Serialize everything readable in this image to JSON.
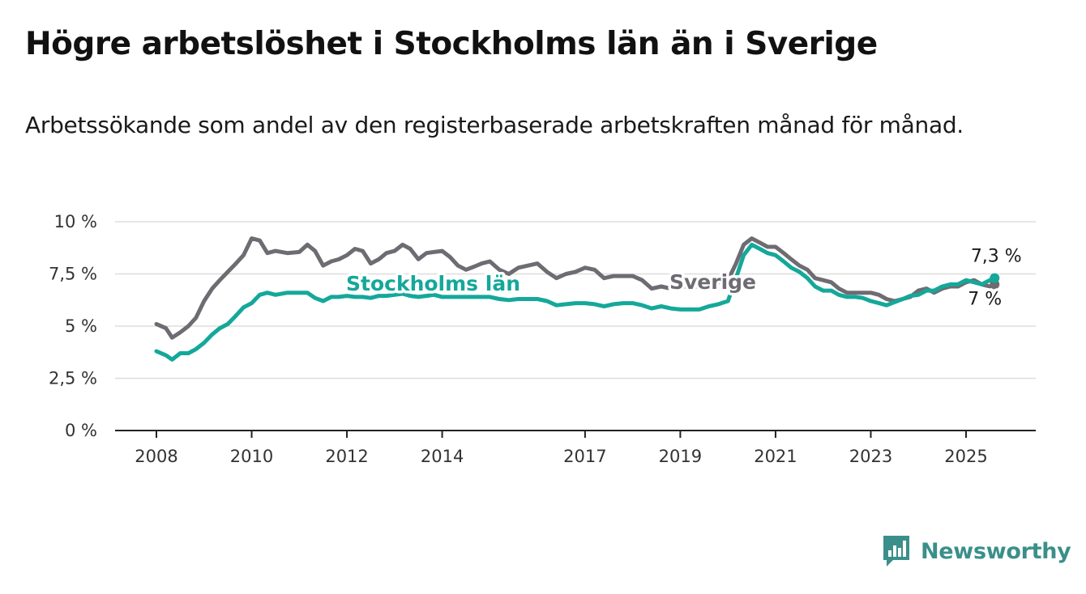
{
  "title": "Högre arbetslöshet i Stockholms län än i Sverige",
  "subtitle": "Arbetssökande som andel av den registerbaserade arbetskraften månad för månad.",
  "brand": "Newsworthy",
  "colors": {
    "sverige": "#6e6c72",
    "stockholm": "#14a89a",
    "grid": "#dddddd",
    "brand": "#3a8f8a"
  },
  "chart_data": {
    "type": "line",
    "title": "Högre arbetslöshet i Stockholms län än i Sverige",
    "xlabel": "",
    "ylabel": "",
    "xlim": [
      2008,
      2026
    ],
    "ylim": [
      0,
      10
    ],
    "x_ticks": [
      {
        "value": 2008,
        "label": "2008"
      },
      {
        "value": 2010,
        "label": "2010"
      },
      {
        "value": 2012,
        "label": "2012"
      },
      {
        "value": 2014,
        "label": "2014"
      },
      {
        "value": 2017,
        "label": "2017"
      },
      {
        "value": 2019,
        "label": "2019"
      },
      {
        "value": 2021,
        "label": "2021"
      },
      {
        "value": 2023,
        "label": "2023"
      },
      {
        "value": 2025,
        "label": "2025"
      }
    ],
    "y_ticks": [
      {
        "value": 0,
        "label": "0 %"
      },
      {
        "value": 2.5,
        "label": "2,5 %"
      },
      {
        "value": 5,
        "label": "5 %"
      },
      {
        "value": 7.5,
        "label": "7,5 %"
      },
      {
        "value": 10,
        "label": "10 %"
      }
    ],
    "grid": true,
    "legend": "inline labels",
    "series": [
      {
        "name": "Sverige",
        "color": "#6e6c72",
        "end_label": "7 %",
        "points": [
          [
            2008.0,
            5.1
          ],
          [
            2008.2,
            4.9
          ],
          [
            2008.33,
            4.45
          ],
          [
            2008.5,
            4.7
          ],
          [
            2008.67,
            5.0
          ],
          [
            2008.83,
            5.4
          ],
          [
            2009.0,
            6.2
          ],
          [
            2009.17,
            6.8
          ],
          [
            2009.33,
            7.2
          ],
          [
            2009.5,
            7.6
          ],
          [
            2009.67,
            8.0
          ],
          [
            2009.83,
            8.4
          ],
          [
            2010.0,
            9.2
          ],
          [
            2010.17,
            9.1
          ],
          [
            2010.33,
            8.5
          ],
          [
            2010.5,
            8.6
          ],
          [
            2010.75,
            8.5
          ],
          [
            2011.0,
            8.55
          ],
          [
            2011.17,
            8.9
          ],
          [
            2011.33,
            8.6
          ],
          [
            2011.5,
            7.9
          ],
          [
            2011.67,
            8.1
          ],
          [
            2011.83,
            8.2
          ],
          [
            2012.0,
            8.4
          ],
          [
            2012.17,
            8.7
          ],
          [
            2012.33,
            8.6
          ],
          [
            2012.5,
            8.0
          ],
          [
            2012.67,
            8.2
          ],
          [
            2012.83,
            8.5
          ],
          [
            2013.0,
            8.6
          ],
          [
            2013.17,
            8.9
          ],
          [
            2013.33,
            8.7
          ],
          [
            2013.5,
            8.2
          ],
          [
            2013.67,
            8.5
          ],
          [
            2013.83,
            8.55
          ],
          [
            2014.0,
            8.6
          ],
          [
            2014.17,
            8.3
          ],
          [
            2014.33,
            7.9
          ],
          [
            2014.5,
            7.7
          ],
          [
            2014.67,
            7.85
          ],
          [
            2014.83,
            8.0
          ],
          [
            2015.0,
            8.1
          ],
          [
            2015.2,
            7.7
          ],
          [
            2015.4,
            7.5
          ],
          [
            2015.6,
            7.8
          ],
          [
            2015.8,
            7.9
          ],
          [
            2016.0,
            8.0
          ],
          [
            2016.2,
            7.6
          ],
          [
            2016.4,
            7.3
          ],
          [
            2016.6,
            7.5
          ],
          [
            2016.8,
            7.6
          ],
          [
            2017.0,
            7.8
          ],
          [
            2017.2,
            7.7
          ],
          [
            2017.4,
            7.3
          ],
          [
            2017.6,
            7.4
          ],
          [
            2017.8,
            7.4
          ],
          [
            2018.0,
            7.4
          ],
          [
            2018.2,
            7.2
          ],
          [
            2018.4,
            6.8
          ],
          [
            2018.6,
            6.9
          ],
          [
            2018.8,
            6.8
          ],
          [
            2019.0,
            6.9
          ],
          [
            2019.2,
            6.9
          ],
          [
            2019.4,
            6.9
          ],
          [
            2019.6,
            7.0
          ],
          [
            2019.8,
            7.1
          ],
          [
            2020.0,
            7.2
          ],
          [
            2020.17,
            8.0
          ],
          [
            2020.33,
            8.9
          ],
          [
            2020.5,
            9.2
          ],
          [
            2020.67,
            9.0
          ],
          [
            2020.83,
            8.8
          ],
          [
            2021.0,
            8.8
          ],
          [
            2021.17,
            8.5
          ],
          [
            2021.33,
            8.2
          ],
          [
            2021.5,
            7.9
          ],
          [
            2021.67,
            7.7
          ],
          [
            2021.83,
            7.3
          ],
          [
            2022.0,
            7.2
          ],
          [
            2022.17,
            7.1
          ],
          [
            2022.33,
            6.8
          ],
          [
            2022.5,
            6.6
          ],
          [
            2022.67,
            6.6
          ],
          [
            2022.83,
            6.6
          ],
          [
            2023.0,
            6.6
          ],
          [
            2023.17,
            6.5
          ],
          [
            2023.33,
            6.3
          ],
          [
            2023.5,
            6.2
          ],
          [
            2023.67,
            6.3
          ],
          [
            2023.83,
            6.4
          ],
          [
            2024.0,
            6.7
          ],
          [
            2024.17,
            6.8
          ],
          [
            2024.33,
            6.6
          ],
          [
            2024.5,
            6.8
          ],
          [
            2024.67,
            6.9
          ],
          [
            2024.83,
            6.9
          ],
          [
            2025.0,
            7.1
          ],
          [
            2025.17,
            7.2
          ],
          [
            2025.33,
            7.0
          ],
          [
            2025.5,
            6.9
          ],
          [
            2025.6,
            7.0
          ]
        ]
      },
      {
        "name": "Stockholms län",
        "color": "#14a89a",
        "end_label": "7,3 %",
        "points": [
          [
            2008.0,
            3.8
          ],
          [
            2008.2,
            3.6
          ],
          [
            2008.33,
            3.4
          ],
          [
            2008.5,
            3.7
          ],
          [
            2008.67,
            3.7
          ],
          [
            2008.83,
            3.9
          ],
          [
            2009.0,
            4.2
          ],
          [
            2009.17,
            4.6
          ],
          [
            2009.33,
            4.9
          ],
          [
            2009.5,
            5.1
          ],
          [
            2009.67,
            5.5
          ],
          [
            2009.83,
            5.9
          ],
          [
            2010.0,
            6.1
          ],
          [
            2010.17,
            6.5
          ],
          [
            2010.33,
            6.6
          ],
          [
            2010.5,
            6.5
          ],
          [
            2010.75,
            6.6
          ],
          [
            2011.0,
            6.6
          ],
          [
            2011.17,
            6.6
          ],
          [
            2011.33,
            6.35
          ],
          [
            2011.5,
            6.2
          ],
          [
            2011.67,
            6.4
          ],
          [
            2011.83,
            6.4
          ],
          [
            2012.0,
            6.45
          ],
          [
            2012.17,
            6.4
          ],
          [
            2012.33,
            6.4
          ],
          [
            2012.5,
            6.35
          ],
          [
            2012.67,
            6.45
          ],
          [
            2012.83,
            6.45
          ],
          [
            2013.0,
            6.5
          ],
          [
            2013.17,
            6.55
          ],
          [
            2013.33,
            6.45
          ],
          [
            2013.5,
            6.4
          ],
          [
            2013.67,
            6.45
          ],
          [
            2013.83,
            6.5
          ],
          [
            2014.0,
            6.4
          ],
          [
            2014.17,
            6.4
          ],
          [
            2014.33,
            6.4
          ],
          [
            2014.5,
            6.4
          ],
          [
            2014.67,
            6.4
          ],
          [
            2014.83,
            6.4
          ],
          [
            2015.0,
            6.4
          ],
          [
            2015.2,
            6.3
          ],
          [
            2015.4,
            6.25
          ],
          [
            2015.6,
            6.3
          ],
          [
            2015.8,
            6.3
          ],
          [
            2016.0,
            6.3
          ],
          [
            2016.2,
            6.2
          ],
          [
            2016.4,
            6.0
          ],
          [
            2016.6,
            6.05
          ],
          [
            2016.8,
            6.1
          ],
          [
            2017.0,
            6.1
          ],
          [
            2017.2,
            6.05
          ],
          [
            2017.4,
            5.95
          ],
          [
            2017.6,
            6.05
          ],
          [
            2017.8,
            6.1
          ],
          [
            2018.0,
            6.1
          ],
          [
            2018.2,
            6.0
          ],
          [
            2018.4,
            5.85
          ],
          [
            2018.6,
            5.95
          ],
          [
            2018.8,
            5.85
          ],
          [
            2019.0,
            5.8
          ],
          [
            2019.2,
            5.8
          ],
          [
            2019.4,
            5.8
          ],
          [
            2019.6,
            5.95
          ],
          [
            2019.8,
            6.05
          ],
          [
            2020.0,
            6.2
          ],
          [
            2020.17,
            7.3
          ],
          [
            2020.33,
            8.4
          ],
          [
            2020.5,
            8.9
          ],
          [
            2020.67,
            8.7
          ],
          [
            2020.83,
            8.5
          ],
          [
            2021.0,
            8.4
          ],
          [
            2021.17,
            8.1
          ],
          [
            2021.33,
            7.8
          ],
          [
            2021.5,
            7.6
          ],
          [
            2021.67,
            7.3
          ],
          [
            2021.83,
            6.9
          ],
          [
            2022.0,
            6.7
          ],
          [
            2022.17,
            6.7
          ],
          [
            2022.33,
            6.5
          ],
          [
            2022.5,
            6.4
          ],
          [
            2022.67,
            6.4
          ],
          [
            2022.83,
            6.35
          ],
          [
            2023.0,
            6.2
          ],
          [
            2023.17,
            6.1
          ],
          [
            2023.33,
            6.0
          ],
          [
            2023.5,
            6.15
          ],
          [
            2023.67,
            6.3
          ],
          [
            2023.83,
            6.45
          ],
          [
            2024.0,
            6.5
          ],
          [
            2024.17,
            6.7
          ],
          [
            2024.33,
            6.7
          ],
          [
            2024.5,
            6.9
          ],
          [
            2024.67,
            7.0
          ],
          [
            2024.83,
            7.0
          ],
          [
            2025.0,
            7.2
          ],
          [
            2025.17,
            7.1
          ],
          [
            2025.33,
            7.0
          ],
          [
            2025.5,
            7.2
          ],
          [
            2025.6,
            7.3
          ]
        ]
      }
    ],
    "annotations": [
      {
        "text": "Sverige",
        "series": "Sverige"
      },
      {
        "text": "Stockholms län",
        "series": "Stockholms län"
      }
    ]
  }
}
